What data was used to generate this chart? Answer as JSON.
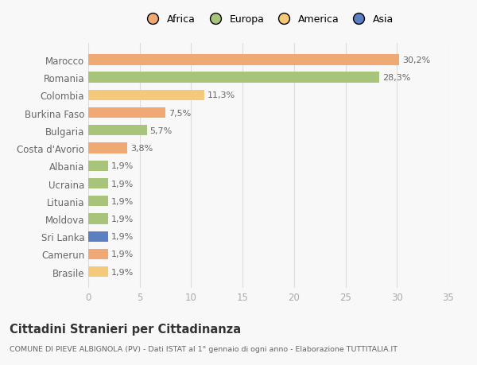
{
  "countries": [
    "Brasile",
    "Camerun",
    "Sri Lanka",
    "Moldova",
    "Lituania",
    "Ucraina",
    "Albania",
    "Costa d'Avorio",
    "Bulgaria",
    "Burkina Faso",
    "Colombia",
    "Romania",
    "Marocco"
  ],
  "values": [
    1.9,
    1.9,
    1.9,
    1.9,
    1.9,
    1.9,
    1.9,
    3.8,
    5.7,
    7.5,
    11.3,
    28.3,
    30.2
  ],
  "labels": [
    "1,9%",
    "1,9%",
    "1,9%",
    "1,9%",
    "1,9%",
    "1,9%",
    "1,9%",
    "3,8%",
    "5,7%",
    "7,5%",
    "11,3%",
    "28,3%",
    "30,2%"
  ],
  "colors": [
    "#f5c97a",
    "#f0a875",
    "#5b7fc1",
    "#a8c47a",
    "#a8c47a",
    "#a8c47a",
    "#a8c47a",
    "#f0a875",
    "#a8c47a",
    "#f0a875",
    "#f5c97a",
    "#a8c47a",
    "#f0a875"
  ],
  "continent_colors": {
    "Africa": "#f0a875",
    "Europa": "#a8c47a",
    "America": "#f5c97a",
    "Asia": "#5b7fc1"
  },
  "xlim": [
    0,
    35
  ],
  "xticks": [
    0,
    5,
    10,
    15,
    20,
    25,
    30,
    35
  ],
  "title": "Cittadini Stranieri per Cittadinanza",
  "subtitle": "COMUNE DI PIEVE ALBIGNOLA (PV) - Dati ISTAT al 1° gennaio di ogni anno - Elaborazione TUTTITALIA.IT",
  "background_color": "#f8f8f8",
  "bar_height": 0.6
}
